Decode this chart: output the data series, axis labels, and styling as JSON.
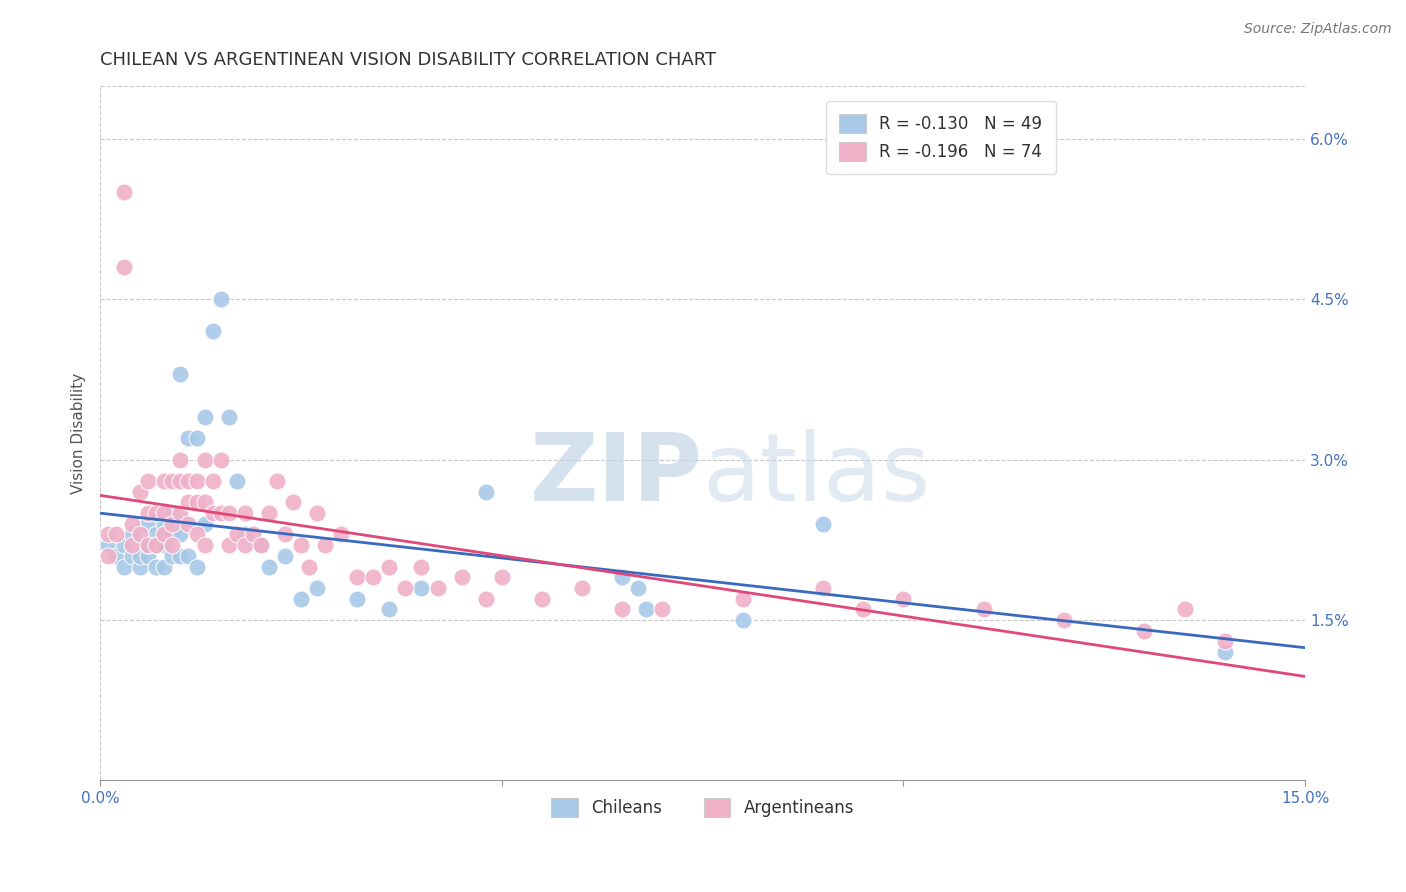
{
  "title": "CHILEAN VS ARGENTINEAN VISION DISABILITY CORRELATION CHART",
  "source": "Source: ZipAtlas.com",
  "ylabel": "Vision Disability",
  "xlim": [
    0.0,
    0.15
  ],
  "ylim": [
    0.0,
    0.065
  ],
  "grid_color": "#c8c8c8",
  "background_color": "#ffffff",
  "chilean_color": "#a8c8e8",
  "argentinean_color": "#f0b0c8",
  "chilean_line_color": "#3a6abf",
  "argentinean_line_color": "#e04878",
  "watermark_color": "#c8d8f0",
  "title_fontsize": 13,
  "axis_label_fontsize": 11,
  "tick_fontsize": 11,
  "legend_fontsize": 12,
  "chilean_scatter_x": [
    0.001,
    0.002,
    0.003,
    0.003,
    0.004,
    0.004,
    0.005,
    0.005,
    0.006,
    0.006,
    0.006,
    0.007,
    0.007,
    0.007,
    0.008,
    0.008,
    0.008,
    0.009,
    0.009,
    0.009,
    0.01,
    0.01,
    0.01,
    0.011,
    0.011,
    0.012,
    0.012,
    0.013,
    0.013,
    0.014,
    0.015,
    0.016,
    0.017,
    0.018,
    0.02,
    0.021,
    0.023,
    0.025,
    0.027,
    0.032,
    0.036,
    0.04,
    0.048,
    0.065,
    0.067,
    0.068,
    0.08,
    0.09,
    0.14
  ],
  "chilean_scatter_y": [
    0.022,
    0.021,
    0.02,
    0.022,
    0.021,
    0.023,
    0.02,
    0.021,
    0.021,
    0.024,
    0.022,
    0.023,
    0.02,
    0.022,
    0.02,
    0.022,
    0.024,
    0.021,
    0.023,
    0.025,
    0.021,
    0.023,
    0.038,
    0.021,
    0.032,
    0.02,
    0.032,
    0.024,
    0.034,
    0.042,
    0.045,
    0.034,
    0.028,
    0.023,
    0.022,
    0.02,
    0.021,
    0.017,
    0.018,
    0.017,
    0.016,
    0.018,
    0.027,
    0.019,
    0.018,
    0.016,
    0.015,
    0.024,
    0.012
  ],
  "argentinean_scatter_x": [
    0.001,
    0.001,
    0.002,
    0.003,
    0.003,
    0.004,
    0.004,
    0.005,
    0.005,
    0.006,
    0.006,
    0.006,
    0.007,
    0.007,
    0.008,
    0.008,
    0.008,
    0.009,
    0.009,
    0.009,
    0.01,
    0.01,
    0.01,
    0.011,
    0.011,
    0.011,
    0.012,
    0.012,
    0.012,
    0.013,
    0.013,
    0.013,
    0.014,
    0.014,
    0.015,
    0.015,
    0.016,
    0.016,
    0.017,
    0.018,
    0.018,
    0.019,
    0.02,
    0.021,
    0.022,
    0.023,
    0.024,
    0.025,
    0.026,
    0.027,
    0.028,
    0.03,
    0.032,
    0.034,
    0.036,
    0.038,
    0.04,
    0.042,
    0.045,
    0.048,
    0.05,
    0.055,
    0.06,
    0.065,
    0.07,
    0.08,
    0.09,
    0.095,
    0.1,
    0.11,
    0.12,
    0.13,
    0.135,
    0.14
  ],
  "argentinean_scatter_y": [
    0.023,
    0.021,
    0.023,
    0.055,
    0.048,
    0.024,
    0.022,
    0.027,
    0.023,
    0.025,
    0.028,
    0.022,
    0.022,
    0.025,
    0.025,
    0.028,
    0.023,
    0.024,
    0.028,
    0.022,
    0.025,
    0.028,
    0.03,
    0.026,
    0.028,
    0.024,
    0.026,
    0.028,
    0.023,
    0.026,
    0.03,
    0.022,
    0.025,
    0.028,
    0.025,
    0.03,
    0.025,
    0.022,
    0.023,
    0.025,
    0.022,
    0.023,
    0.022,
    0.025,
    0.028,
    0.023,
    0.026,
    0.022,
    0.02,
    0.025,
    0.022,
    0.023,
    0.019,
    0.019,
    0.02,
    0.018,
    0.02,
    0.018,
    0.019,
    0.017,
    0.019,
    0.017,
    0.018,
    0.016,
    0.016,
    0.017,
    0.018,
    0.016,
    0.017,
    0.016,
    0.015,
    0.014,
    0.016,
    0.013
  ]
}
